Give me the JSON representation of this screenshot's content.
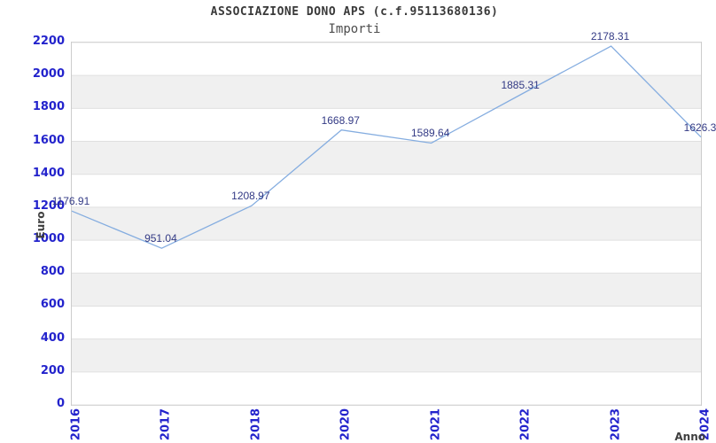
{
  "title": "ASSOCIAZIONE DONO APS (c.f.95113680136)",
  "subtitle": "Importi",
  "chart_data": {
    "type": "line",
    "title": "ASSOCIAZIONE DONO APS (c.f.95113680136)",
    "subtitle": "Importi",
    "x": [
      "2016",
      "2017",
      "2018",
      "2020",
      "2021",
      "2022",
      "2023",
      "2024"
    ],
    "series": [
      {
        "name": "Importi",
        "values": [
          1176.91,
          951.04,
          1208.97,
          1668.97,
          1589.64,
          1885.31,
          2178.31,
          1626.3
        ]
      }
    ],
    "point_labels": [
      "1176.91",
      "951.04",
      "1208.97",
      "1668.97",
      "1589.64",
      "1885.31",
      "2178.31",
      "1626.3"
    ],
    "xlabel": "Anno",
    "ylabel": "Euro",
    "ylim": [
      0,
      2200
    ],
    "ytick_step": 200,
    "yticks": [
      0,
      200,
      400,
      600,
      800,
      1000,
      1200,
      1400,
      1600,
      1800,
      2000,
      2200
    ],
    "grid": true,
    "banded_background": true,
    "legend_position": "none"
  },
  "colors": {
    "line": "#85ade0",
    "tick_label": "#2323cc",
    "data_label": "#333a85",
    "band": "#f0f0f0",
    "band_alt": "#ffffff",
    "grid": "#e0e0e0",
    "frame": "#cccccc",
    "title": "#3a3a3a",
    "subtitle": "#4d4d4d",
    "axis_title": "#3f3f3f"
  }
}
